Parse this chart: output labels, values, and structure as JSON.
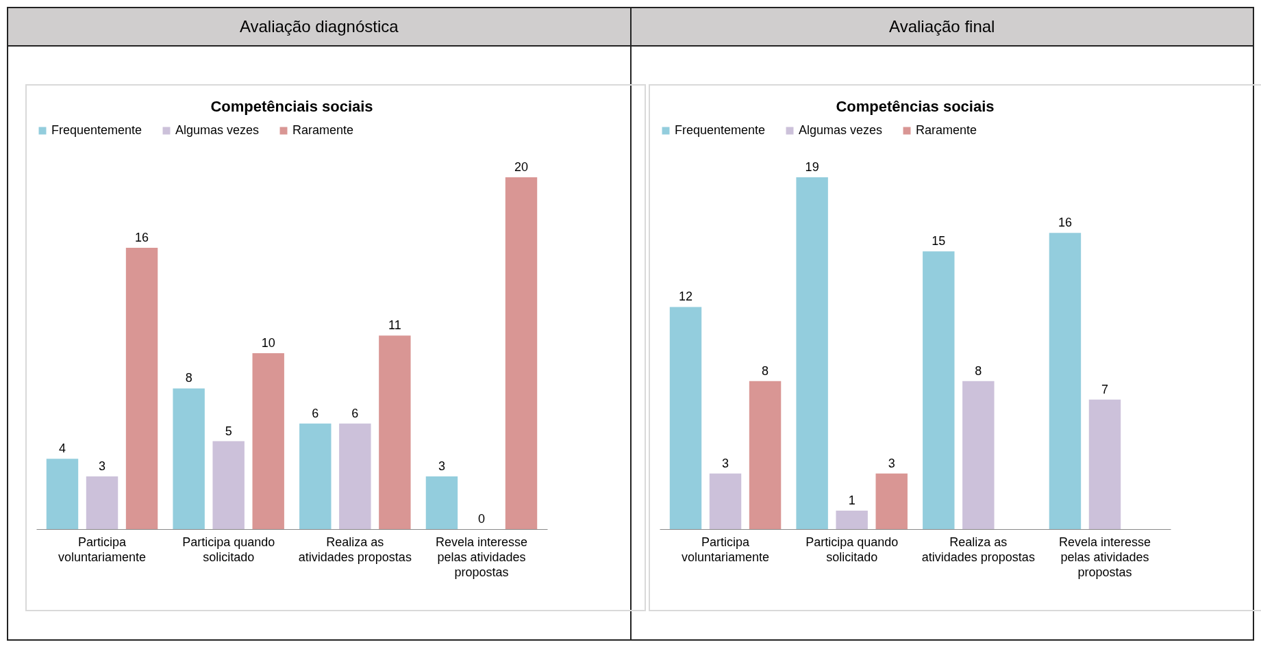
{
  "chart_data": [
    {
      "type": "bar",
      "title": "Competênciais sociais",
      "annotations": [
        "Avaliação diagnóstica"
      ],
      "categories": [
        "Participa voluntariamente",
        "Participa quando solicitado",
        "Realiza as atividades propostas",
        "Revela interesse pelas atividades propostas"
      ],
      "series": [
        {
          "name": "Frequentemente",
          "color": "#93cddd",
          "values": [
            4,
            8,
            6,
            3
          ]
        },
        {
          "name": "Algumas vezes",
          "color": "#ccc1da",
          "values": [
            3,
            5,
            6,
            0
          ]
        },
        {
          "name": "Raramente",
          "color": "#d99694",
          "values": [
            16,
            10,
            11,
            20
          ]
        }
      ],
      "data_labels": true,
      "legend": "top"
    },
    {
      "type": "bar",
      "title": "Competências sociais",
      "annotations": [
        "Avaliação final"
      ],
      "categories": [
        "Participa voluntariamente",
        "Participa quando solicitado",
        "Realiza as atividades propostas",
        "Revela interesse pelas atividades propostas"
      ],
      "series": [
        {
          "name": "Frequentemente",
          "color": "#93cddd",
          "values": [
            12,
            19,
            15,
            16
          ]
        },
        {
          "name": "Algumas vezes",
          "color": "#ccc1da",
          "values": [
            3,
            1,
            8,
            7
          ]
        },
        {
          "name": "Raramente",
          "color": "#d99694",
          "values": [
            8,
            3,
            null,
            null
          ]
        }
      ],
      "data_labels": true,
      "legend": "top"
    }
  ]
}
